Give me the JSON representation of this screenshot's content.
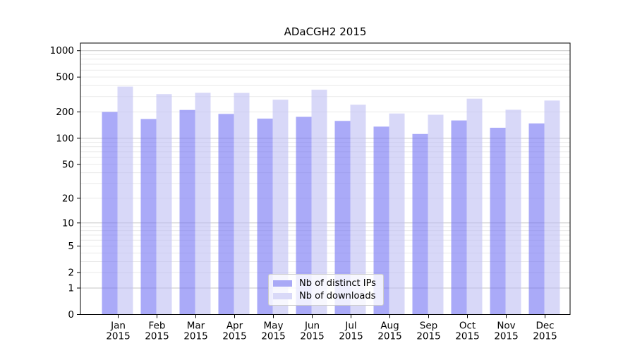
{
  "chart_data": {
    "type": "bar",
    "title": "ADaCGH2 2015",
    "yscale": "log1p",
    "yticks": [
      0,
      1,
      2,
      5,
      10,
      20,
      50,
      100,
      200,
      500,
      1000
    ],
    "ylim": [
      0,
      1360
    ],
    "grid": {
      "minor_color": "#e9e9e9",
      "major_color": "#c6c6c6",
      "major_at": [
        1,
        10,
        100,
        1000
      ]
    },
    "categories": [
      {
        "month": "Jan",
        "year": "2015"
      },
      {
        "month": "Feb",
        "year": "2015"
      },
      {
        "month": "Mar",
        "year": "2015"
      },
      {
        "month": "Apr",
        "year": "2015"
      },
      {
        "month": "May",
        "year": "2015"
      },
      {
        "month": "Jun",
        "year": "2015"
      },
      {
        "month": "Jul",
        "year": "2015"
      },
      {
        "month": "Aug",
        "year": "2015"
      },
      {
        "month": "Sep",
        "year": "2015"
      },
      {
        "month": "Oct",
        "year": "2015"
      },
      {
        "month": "Nov",
        "year": "2015"
      },
      {
        "month": "Dec",
        "year": "2015"
      }
    ],
    "series": [
      {
        "name": "Nb of distinct IPs",
        "key": "distinct-ips",
        "color": "rgba(113,113,243,0.6)",
        "solid_color": "#a9a9f6",
        "values": [
          200,
          166,
          211,
          190,
          168,
          176,
          158,
          136,
          112,
          160,
          132,
          148
        ]
      },
      {
        "name": "Nb of downloads",
        "key": "downloads",
        "color": "rgba(190,190,243,0.6)",
        "solid_color": "#d9d9f8",
        "values": [
          390,
          320,
          331,
          330,
          276,
          359,
          242,
          192,
          186,
          284,
          212,
          270
        ]
      }
    ],
    "legend": {
      "position": "lower-center"
    }
  }
}
